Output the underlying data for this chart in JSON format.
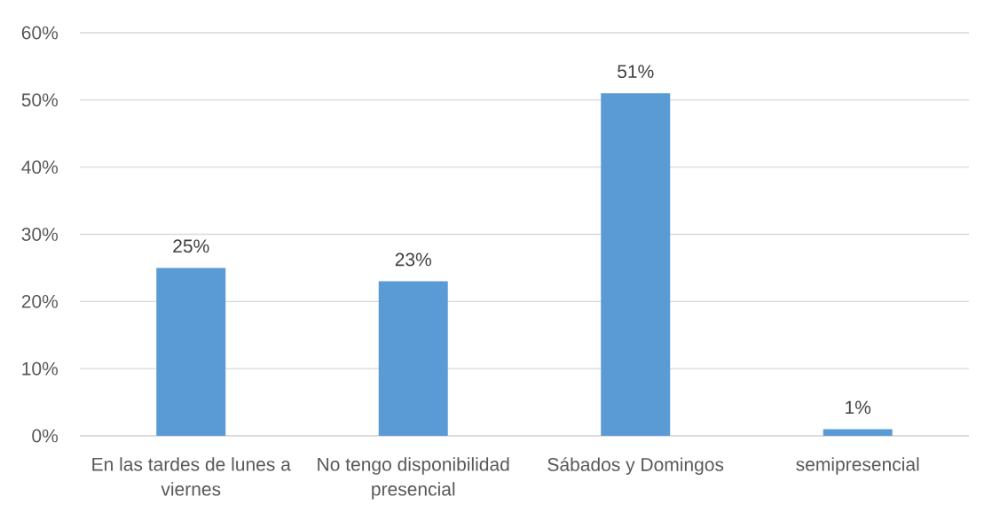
{
  "chart_data": {
    "type": "bar",
    "categories": [
      "En las tardes de lunes a viernes",
      "No tengo disponibilidad presencial",
      "Sábados y Domingos",
      "semipresencial"
    ],
    "values": [
      25,
      23,
      51,
      1
    ],
    "value_labels": [
      "25%",
      "23%",
      "51%",
      "1%"
    ],
    "color": "#5b9bd5",
    "ylim": [
      0,
      60
    ],
    "yticks": [
      {
        "value": 0,
        "label": "0%"
      },
      {
        "value": 10,
        "label": "10%"
      },
      {
        "value": 20,
        "label": "20%"
      },
      {
        "value": 30,
        "label": "30%"
      },
      {
        "value": 40,
        "label": "40%"
      },
      {
        "value": 50,
        "label": "50%"
      },
      {
        "value": 60,
        "label": "60%"
      }
    ],
    "grid": "y"
  }
}
